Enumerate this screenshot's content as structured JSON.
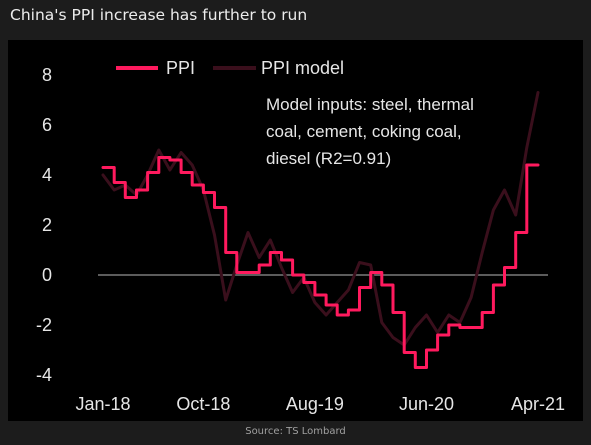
{
  "page": {
    "title": "China's PPI increase has further to run",
    "source": "Source: TS Lombard"
  },
  "colors": {
    "ppi": "#ff1a5e",
    "ppi_model": "#3a0f1c",
    "zero_line": "#7a7a7a",
    "text": "#e6e6e6",
    "background": "#000000"
  },
  "chart_data": {
    "type": "line",
    "title": "China's PPI increase has further to run",
    "xlabel": "",
    "ylabel": "",
    "ylim": [
      -4,
      8
    ],
    "yticks": [
      -4,
      -2,
      0,
      2,
      4,
      6,
      8
    ],
    "x_tick_labels": [
      "Jan-18",
      "Oct-18",
      "Aug-19",
      "Jun-20",
      "Apr-21"
    ],
    "x_tick_dates": [
      "2018-01",
      "2018-10",
      "2019-08",
      "2020-06",
      "2021-04"
    ],
    "legend_position": "top-left",
    "annotation": [
      "Model inputs: steel, thermal",
      "coal, cement, coking coal,",
      "diesel (R2=0.91)"
    ],
    "series": [
      {
        "name": "PPI",
        "style": "step",
        "points": [
          [
            "2018-01",
            4.3
          ],
          [
            "2018-02",
            3.7
          ],
          [
            "2018-03",
            3.1
          ],
          [
            "2018-04",
            3.4
          ],
          [
            "2018-05",
            4.1
          ],
          [
            "2018-06",
            4.7
          ],
          [
            "2018-07",
            4.6
          ],
          [
            "2018-08",
            4.1
          ],
          [
            "2018-09",
            3.6
          ],
          [
            "2018-10",
            3.3
          ],
          [
            "2018-11",
            2.7
          ],
          [
            "2018-12",
            0.9
          ],
          [
            "2019-01",
            0.1
          ],
          [
            "2019-02",
            0.1
          ],
          [
            "2019-03",
            0.4
          ],
          [
            "2019-04",
            0.9
          ],
          [
            "2019-05",
            0.6
          ],
          [
            "2019-06",
            0.0
          ],
          [
            "2019-07",
            -0.3
          ],
          [
            "2019-08",
            -0.8
          ],
          [
            "2019-09",
            -1.2
          ],
          [
            "2019-10",
            -1.6
          ],
          [
            "2019-11",
            -1.4
          ],
          [
            "2019-12",
            -0.5
          ],
          [
            "2020-01",
            0.1
          ],
          [
            "2020-02",
            -0.4
          ],
          [
            "2020-03",
            -1.5
          ],
          [
            "2020-04",
            -3.1
          ],
          [
            "2020-05",
            -3.7
          ],
          [
            "2020-06",
            -3.0
          ],
          [
            "2020-07",
            -2.4
          ],
          [
            "2020-08",
            -2.0
          ],
          [
            "2020-09",
            -2.1
          ],
          [
            "2020-10",
            -2.1
          ],
          [
            "2020-11",
            -1.5
          ],
          [
            "2020-12",
            -0.4
          ],
          [
            "2021-01",
            0.3
          ],
          [
            "2021-02",
            1.7
          ],
          [
            "2021-03",
            4.4
          ],
          [
            "2021-04",
            4.4
          ]
        ]
      },
      {
        "name": "PPI model",
        "style": "line",
        "points": [
          [
            "2018-01",
            4.0
          ],
          [
            "2018-02",
            3.4
          ],
          [
            "2018-03",
            3.6
          ],
          [
            "2018-04",
            3.2
          ],
          [
            "2018-05",
            4.0
          ],
          [
            "2018-06",
            5.0
          ],
          [
            "2018-07",
            4.2
          ],
          [
            "2018-08",
            4.9
          ],
          [
            "2018-09",
            4.4
          ],
          [
            "2018-10",
            3.4
          ],
          [
            "2018-11",
            1.6
          ],
          [
            "2018-12",
            -1.0
          ],
          [
            "2019-01",
            0.4
          ],
          [
            "2019-02",
            1.7
          ],
          [
            "2019-03",
            0.7
          ],
          [
            "2019-04",
            1.4
          ],
          [
            "2019-05",
            0.3
          ],
          [
            "2019-06",
            -0.7
          ],
          [
            "2019-07",
            -0.1
          ],
          [
            "2019-08",
            -1.1
          ],
          [
            "2019-09",
            -1.6
          ],
          [
            "2019-10",
            -1.1
          ],
          [
            "2019-11",
            -0.6
          ],
          [
            "2019-12",
            0.5
          ],
          [
            "2020-01",
            0.4
          ],
          [
            "2020-02",
            -1.9
          ],
          [
            "2020-03",
            -2.5
          ],
          [
            "2020-04",
            -2.8
          ],
          [
            "2020-05",
            -2.1
          ],
          [
            "2020-06",
            -1.6
          ],
          [
            "2020-07",
            -2.3
          ],
          [
            "2020-08",
            -1.6
          ],
          [
            "2020-09",
            -1.9
          ],
          [
            "2020-10",
            -0.9
          ],
          [
            "2020-11",
            0.9
          ],
          [
            "2020-12",
            2.6
          ],
          [
            "2021-01",
            3.4
          ],
          [
            "2021-02",
            2.4
          ],
          [
            "2021-03",
            5.1
          ],
          [
            "2021-04",
            7.3
          ]
        ]
      }
    ]
  }
}
